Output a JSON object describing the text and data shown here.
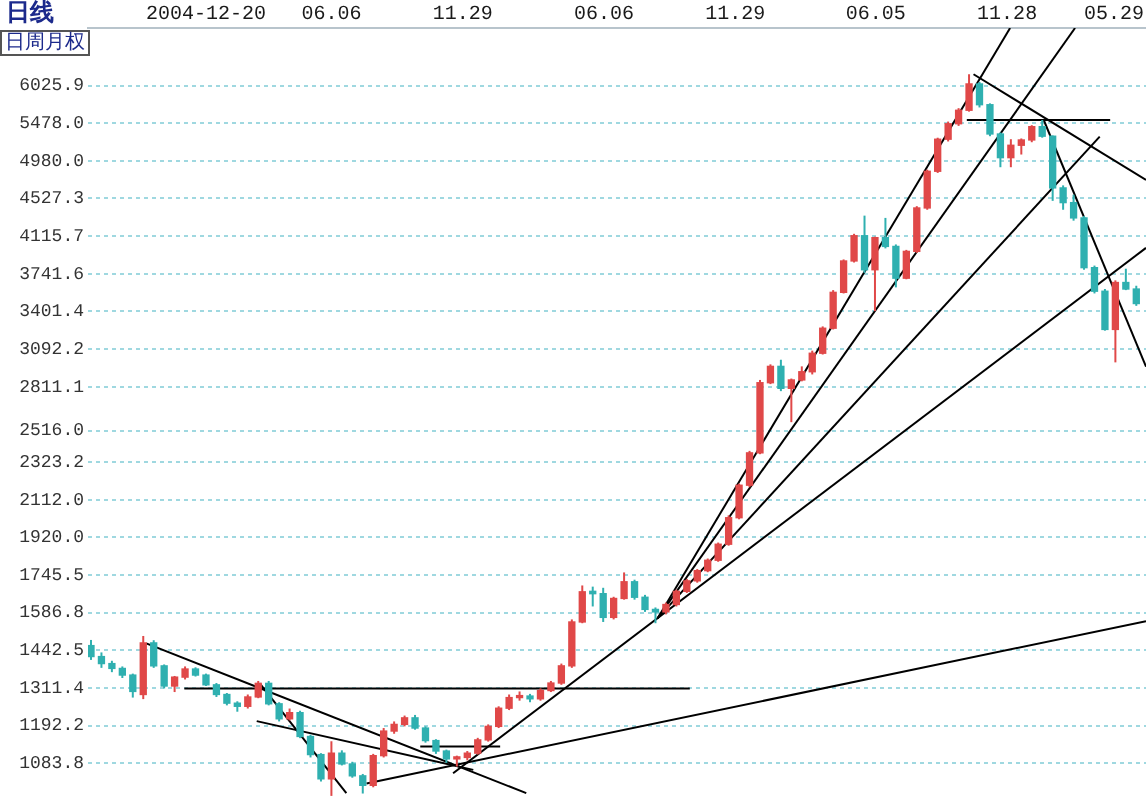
{
  "chart_data": {
    "type": "candlestick",
    "title": "日线",
    "annotations": [
      "日周月权"
    ],
    "x": [
      "2004-07-19",
      "2004-08-02",
      "2004-08-16",
      "2004-08-30",
      "2004-09-13",
      "2004-09-27",
      "2004-10-11",
      "2004-10-25",
      "2004-11-08",
      "2004-11-22",
      "2004-12-06",
      "2004-12-20",
      "2005-01-03",
      "2005-01-17",
      "2005-01-31",
      "2005-02-14",
      "2005-02-28",
      "2005-03-14",
      "2005-03-28",
      "2005-04-11",
      "2005-04-25",
      "2005-05-09",
      "2005-05-23",
      "2005-06-06",
      "2005-06-20",
      "2005-07-04",
      "2005-07-18",
      "2005-08-01",
      "2005-08-15",
      "2005-08-29",
      "2005-09-12",
      "2005-09-26",
      "2005-10-10",
      "2005-10-24",
      "2005-11-07",
      "2005-11-21",
      "2005-12-05",
      "2005-12-19",
      "2006-01-02",
      "2006-01-16",
      "2006-01-30",
      "2006-02-13",
      "2006-02-27",
      "2006-03-13",
      "2006-03-27",
      "2006-04-10",
      "2006-04-24",
      "2006-05-08",
      "2006-05-22",
      "2006-06-05",
      "2006-06-19",
      "2006-07-03",
      "2006-07-17",
      "2006-07-31",
      "2006-08-14",
      "2006-08-28",
      "2006-09-11",
      "2006-09-25",
      "2006-10-09",
      "2006-10-23",
      "2006-11-06",
      "2006-11-20",
      "2006-12-04",
      "2006-12-18",
      "2007-01-01",
      "2007-01-15",
      "2007-01-29",
      "2007-02-12",
      "2007-02-26",
      "2007-03-12",
      "2007-03-26",
      "2007-04-09",
      "2007-04-23",
      "2007-05-07",
      "2007-05-21",
      "2007-06-04",
      "2007-06-18",
      "2007-07-02",
      "2007-07-16",
      "2007-07-30",
      "2007-08-13",
      "2007-08-27",
      "2007-09-10",
      "2007-09-24",
      "2007-10-08",
      "2007-10-22",
      "2007-11-05",
      "2007-11-19",
      "2007-12-03",
      "2007-12-17",
      "2007-12-31",
      "2008-01-14",
      "2008-01-28",
      "2008-02-11",
      "2008-02-25",
      "2008-03-10",
      "2008-03-24",
      "2008-04-07",
      "2008-04-21",
      "2008-05-05",
      "2008-05-19"
    ],
    "ohlc": [
      [
        1460,
        1481,
        1408,
        1420
      ],
      [
        1420,
        1435,
        1380,
        1395
      ],
      [
        1395,
        1405,
        1365,
        1378
      ],
      [
        1378,
        1385,
        1345,
        1355
      ],
      [
        1355,
        1360,
        1280,
        1300
      ],
      [
        1290,
        1496,
        1275,
        1470
      ],
      [
        1470,
        1480,
        1380,
        1387
      ],
      [
        1387,
        1392,
        1310,
        1318
      ],
      [
        1318,
        1352,
        1298,
        1348
      ],
      [
        1348,
        1385,
        1340,
        1376
      ],
      [
        1376,
        1382,
        1350,
        1355
      ],
      [
        1355,
        1360,
        1318,
        1322
      ],
      [
        1322,
        1328,
        1282,
        1290
      ],
      [
        1290,
        1295,
        1255,
        1262
      ],
      [
        1262,
        1268,
        1235,
        1252
      ],
      [
        1252,
        1290,
        1245,
        1282
      ],
      [
        1282,
        1335,
        1278,
        1327
      ],
      [
        1327,
        1335,
        1255,
        1260
      ],
      [
        1260,
        1265,
        1205,
        1213
      ],
      [
        1213,
        1245,
        1208,
        1232
      ],
      [
        1232,
        1238,
        1155,
        1160
      ],
      [
        1160,
        1165,
        1100,
        1108
      ],
      [
        1108,
        1112,
        1035,
        1042
      ],
      [
        1042,
        1146,
        998,
        1112
      ],
      [
        1112,
        1120,
        1078,
        1082
      ],
      [
        1082,
        1088,
        1045,
        1050
      ],
      [
        1050,
        1055,
        1004,
        1025
      ],
      [
        1025,
        1110,
        1020,
        1105
      ],
      [
        1105,
        1185,
        1100,
        1176
      ],
      [
        1176,
        1205,
        1168,
        1196
      ],
      [
        1196,
        1223,
        1190,
        1216
      ],
      [
        1216,
        1225,
        1180,
        1185
      ],
      [
        1185,
        1190,
        1142,
        1148
      ],
      [
        1148,
        1152,
        1110,
        1118
      ],
      [
        1118,
        1122,
        1085,
        1096
      ],
      [
        1096,
        1105,
        1075,
        1100
      ],
      [
        1100,
        1118,
        1092,
        1112
      ],
      [
        1112,
        1156,
        1108,
        1150
      ],
      [
        1150,
        1196,
        1145,
        1190
      ],
      [
        1190,
        1252,
        1185,
        1246
      ],
      [
        1246,
        1290,
        1240,
        1280
      ],
      [
        1280,
        1300,
        1270,
        1285
      ],
      [
        1285,
        1292,
        1265,
        1276
      ],
      [
        1276,
        1310,
        1270,
        1303
      ],
      [
        1303,
        1335,
        1298,
        1328
      ],
      [
        1328,
        1395,
        1322,
        1387
      ],
      [
        1387,
        1560,
        1380,
        1550
      ],
      [
        1550,
        1700,
        1545,
        1673
      ],
      [
        1675,
        1695,
        1612,
        1665
      ],
      [
        1665,
        1690,
        1550,
        1568
      ],
      [
        1568,
        1652,
        1560,
        1645
      ],
      [
        1645,
        1757,
        1640,
        1716
      ],
      [
        1716,
        1725,
        1640,
        1650
      ],
      [
        1650,
        1660,
        1590,
        1600
      ],
      [
        1600,
        1608,
        1545,
        1590
      ],
      [
        1590,
        1628,
        1580,
        1620
      ],
      [
        1620,
        1682,
        1612,
        1675
      ],
      [
        1675,
        1728,
        1668,
        1720
      ],
      [
        1720,
        1772,
        1712,
        1765
      ],
      [
        1765,
        1820,
        1758,
        1812
      ],
      [
        1812,
        1895,
        1805,
        1887
      ],
      [
        1887,
        2030,
        1880,
        2018
      ],
      [
        2018,
        2200,
        2010,
        2191
      ],
      [
        2191,
        2390,
        2180,
        2378
      ],
      [
        2378,
        2860,
        2370,
        2840
      ],
      [
        2840,
        2975,
        2830,
        2960
      ],
      [
        2960,
        3010,
        2780,
        2800
      ],
      [
        2800,
        2870,
        2570,
        2860
      ],
      [
        2860,
        2960,
        2850,
        2920
      ],
      [
        2920,
        3080,
        2900,
        3060
      ],
      [
        3060,
        3275,
        3050,
        3260
      ],
      [
        3260,
        3590,
        3250,
        3570
      ],
      [
        3570,
        3880,
        3560,
        3865
      ],
      [
        3865,
        4140,
        3850,
        4120
      ],
      [
        4120,
        4335,
        3750,
        3780
      ],
      [
        3780,
        4110,
        3404,
        4100
      ],
      [
        4100,
        4310,
        3990,
        4010
      ],
      [
        4010,
        4030,
        3615,
        3700
      ],
      [
        3700,
        3975,
        3690,
        3960
      ],
      [
        3960,
        4440,
        3945,
        4420
      ],
      [
        4420,
        4870,
        4400,
        4850
      ],
      [
        4850,
        5280,
        4830,
        5260
      ],
      [
        5260,
        5500,
        5230,
        5470
      ],
      [
        5470,
        5690,
        5440,
        5660
      ],
      [
        5660,
        6200,
        5640,
        6050
      ],
      [
        6050,
        6080,
        5700,
        5740
      ],
      [
        5740,
        5760,
        5300,
        5330
      ],
      [
        5330,
        5350,
        4900,
        5020
      ],
      [
        5020,
        5260,
        4900,
        5180
      ],
      [
        5180,
        5270,
        5060,
        5250
      ],
      [
        5250,
        5450,
        5220,
        5430
      ],
      [
        5430,
        5522,
        5280,
        5300
      ],
      [
        5300,
        5310,
        4500,
        4650
      ],
      [
        4650,
        4680,
        4400,
        4480
      ],
      [
        4480,
        4570,
        4280,
        4310
      ],
      [
        4310,
        4330,
        3780,
        3800
      ],
      [
        3800,
        3820,
        3560,
        3580
      ],
      [
        3580,
        3600,
        3240,
        3250
      ],
      [
        3250,
        3680,
        2990,
        3660
      ],
      [
        3660,
        3790,
        3590,
        3600
      ],
      [
        3600,
        3630,
        3450,
        3470
      ]
    ],
    "colors": [
      "#2fb0b0",
      "#2fb0b0",
      "#2fb0b0",
      "#2fb0b0",
      "#2fb0b0",
      "#e04848",
      "#2fb0b0",
      "#2fb0b0",
      "#e04848",
      "#e04848",
      "#2fb0b0",
      "#2fb0b0",
      "#2fb0b0",
      "#2fb0b0",
      "#2fb0b0",
      "#e04848",
      "#e04848",
      "#2fb0b0",
      "#2fb0b0",
      "#e04848",
      "#2fb0b0",
      "#2fb0b0",
      "#2fb0b0",
      "#e04848",
      "#2fb0b0",
      "#2fb0b0",
      "#2fb0b0",
      "#e04848",
      "#e04848",
      "#e04848",
      "#e04848",
      "#2fb0b0",
      "#2fb0b0",
      "#2fb0b0",
      "#2fb0b0",
      "#e04848",
      "#e04848",
      "#e04848",
      "#e04848",
      "#e04848",
      "#e04848",
      "#e04848",
      "#2fb0b0",
      "#e04848",
      "#e04848",
      "#e04848",
      "#e04848",
      "#e04848",
      "#2fb0b0",
      "#2fb0b0",
      "#e04848",
      "#e04848",
      "#2fb0b0",
      "#2fb0b0",
      "#2fb0b0",
      "#e04848",
      "#e04848",
      "#e04848",
      "#e04848",
      "#e04848",
      "#e04848",
      "#e04848",
      "#e04848",
      "#e04848",
      "#e04848",
      "#e04848",
      "#2fb0b0",
      "#e04848",
      "#e04848",
      "#e04848",
      "#e04848",
      "#e04848",
      "#e04848",
      "#e04848",
      "#2fb0b0",
      "#e04848",
      "#2fb0b0",
      "#2fb0b0",
      "#e04848",
      "#e04848",
      "#e04848",
      "#e04848",
      "#e04848",
      "#e04848",
      "#e04848",
      "#2fb0b0",
      "#2fb0b0",
      "#2fb0b0",
      "#e04848",
      "#e04848",
      "#e04848",
      "#2fb0b0",
      "#2fb0b0",
      "#2fb0b0",
      "#2fb0b0",
      "#2fb0b0",
      "#2fb0b0",
      "#2fb0b0",
      "#e04848",
      "#2fb0b0",
      "#2fb0b0"
    ],
    "series": [
      {
        "type": "line",
        "color": "#000000",
        "x": [
          "2004-10-01",
          "2006-02-22"
        ],
        "values": [
          1468,
          1005
        ]
      },
      {
        "type": "line",
        "color": "#000000",
        "x": [
          "2004-11-21",
          "2006-09-29"
        ],
        "values": [
          1310,
          1310
        ]
      },
      {
        "type": "line",
        "color": "#000000",
        "x": [
          "2005-02-26",
          "2005-12-13"
        ],
        "values": [
          1206,
          1066
        ]
      },
      {
        "type": "line",
        "color": "#000000",
        "x": [
          "2005-03-02",
          "2005-06-26"
        ],
        "values": [
          1327,
          1005
        ]
      },
      {
        "type": "line",
        "color": "#000000",
        "x": [
          "2005-10-03",
          "2006-01-18"
        ],
        "values": [
          1131,
          1131
        ]
      },
      {
        "type": "line",
        "color": "#000000",
        "x": [
          "2005-07-23",
          "2008-06-01"
        ],
        "values": [
          1030,
          1553
        ]
      },
      {
        "type": "line",
        "color": "#000000",
        "x": [
          "2005-11-16",
          "2008-06-01"
        ],
        "values": [
          1057,
          3995
        ]
      },
      {
        "type": "line",
        "color": "#000000",
        "x": [
          "2006-08-17",
          "2007-12-02"
        ],
        "values": [
          1565,
          6970
        ]
      },
      {
        "type": "line",
        "color": "#000000",
        "x": [
          "2006-08-17",
          "2008-02-27"
        ],
        "values": [
          1565,
          6970
        ]
      },
      {
        "type": "line",
        "color": "#000000",
        "x": [
          "2006-08-17",
          "2008-03-31"
        ],
        "values": [
          1565,
          5294
        ]
      },
      {
        "type": "line",
        "color": "#000000",
        "x": [
          "2007-10-14",
          "2008-06-01"
        ],
        "values": [
          6200,
          4744
        ]
      },
      {
        "type": "line",
        "color": "#000000",
        "x": [
          "2007-10-05",
          "2008-04-14"
        ],
        "values": [
          5522,
          5522
        ]
      },
      {
        "type": "line",
        "color": "#000000",
        "x": [
          "2008-01-16",
          "2008-06-01"
        ],
        "values": [
          5522,
          2958
        ]
      }
    ],
    "xlim": [
      "2004-07-15",
      "2008-06-01"
    ],
    "xticks": [
      {
        "value": "2004-12-20",
        "label": "2004-12-20"
      },
      {
        "value": "2005-06-06",
        "label": "06.06"
      },
      {
        "value": "2005-11-29",
        "label": "11.29"
      },
      {
        "value": "2006-06-06",
        "label": "06.06"
      },
      {
        "value": "2006-11-29",
        "label": "11.29"
      },
      {
        "value": "2007-06-05",
        "label": "06.05"
      },
      {
        "value": "2007-11-28",
        "label": "11.28"
      },
      {
        "value": "2008-05-29",
        "label": "05.29"
      }
    ],
    "ylim": [
      963,
      6970
    ],
    "log": true,
    "yticks": [
      1083.8,
      1192.2,
      1311.4,
      1442.5,
      1586.8,
      1745.5,
      {
        "value": 1920,
        "label": "1920.0"
      },
      {
        "value": 2112,
        "label": "2112.0"
      },
      2323.2,
      {
        "value": 2516,
        "label": "2516.0"
      },
      2811.1,
      3092.2,
      3401.4,
      3741.6,
      4115.7,
      4527.3,
      {
        "value": 4980,
        "label": "4980.0"
      },
      {
        "value": 5478,
        "label": "5478.0"
      },
      6025.9
    ],
    "grid": "y"
  }
}
